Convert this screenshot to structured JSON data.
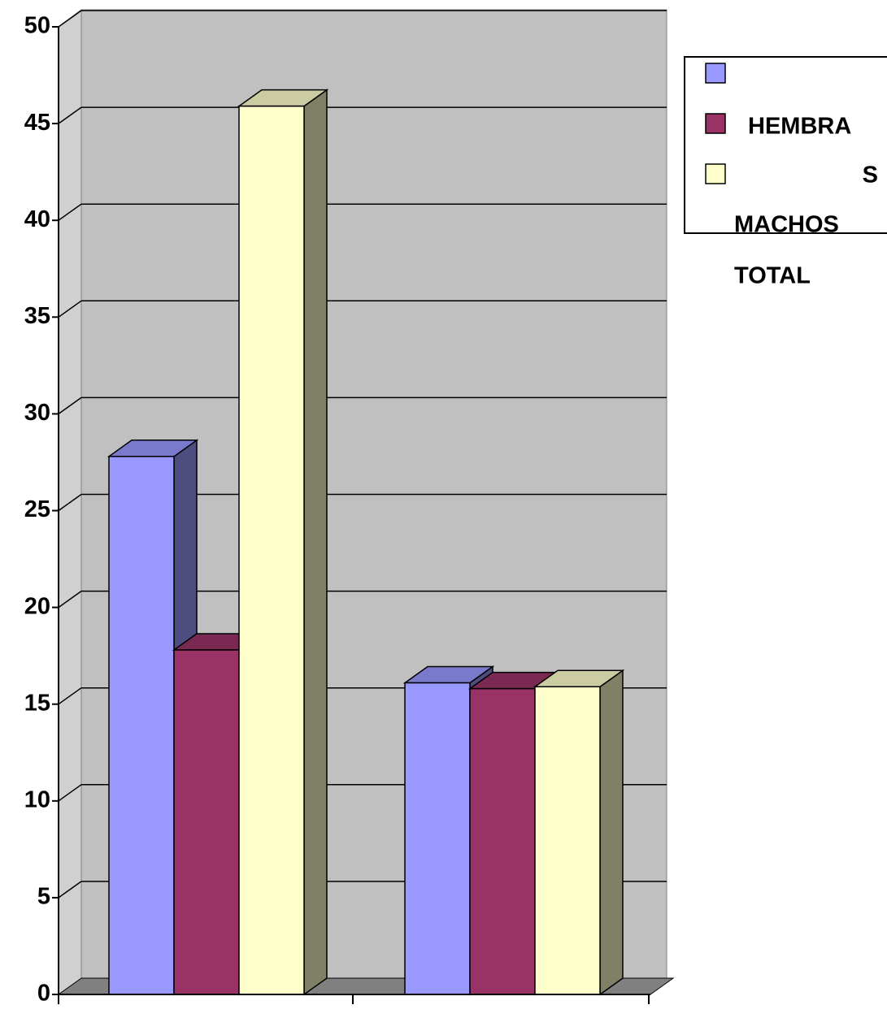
{
  "chart_data": {
    "type": "bar3d",
    "categories": [
      null,
      null
    ],
    "series": [
      {
        "color": "#9999ff",
        "values": [
          27.8,
          16.1
        ]
      },
      {
        "color": "#993366",
        "values": [
          17.8,
          15.8
        ]
      },
      {
        "color": "#ffffcc",
        "values": [
          45.9,
          15.9
        ]
      }
    ],
    "ylim": [
      0,
      50
    ],
    "yticks": [
      0,
      5,
      10,
      15,
      20,
      25,
      30,
      35,
      40,
      45,
      50
    ],
    "grid": true,
    "legend": {
      "position": "upper right",
      "lines": [
        "HEMBRA",
        "S",
        "MACHOS",
        "TOTAL"
      ]
    }
  }
}
